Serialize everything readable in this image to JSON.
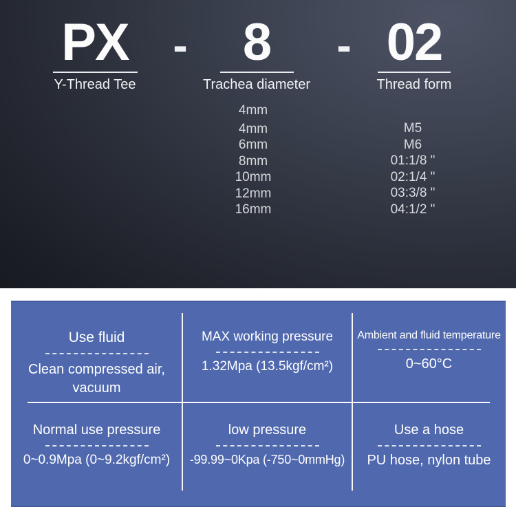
{
  "model_code": {
    "separator": "-",
    "parts": [
      {
        "code": "PX",
        "label": "Y-Thread Tee"
      },
      {
        "code": "8",
        "label": "Trachea diameter"
      },
      {
        "code": "02",
        "label": "Thread form"
      }
    ],
    "trachea_diameter_options": [
      "4mm",
      "4mm",
      "6mm",
      "8mm",
      "10mm",
      "12mm",
      "16mm"
    ],
    "thread_form_options": [
      "M5",
      "M6",
      "01:1/8 \"",
      "02:1/4 \"",
      "03:3/8 \"",
      "04:1/2 \""
    ]
  },
  "spec_table": {
    "cells": [
      {
        "label": "Use fluid",
        "value": "Clean compressed air, vacuum"
      },
      {
        "label": "MAX working pressure",
        "value": "1.32Mpa (13.5kgf/cm²)"
      },
      {
        "label": "Ambient and fluid temperature",
        "value": "0~60°C"
      },
      {
        "label": "Normal use pressure",
        "value": "0~0.9Mpa (0~9.2kgf/cm²)"
      },
      {
        "label": "low pressure",
        "value": "-99.99~0Kpa (-750~0mmHg)"
      },
      {
        "label": "Use a hose",
        "value": "PU hose, nylon tube"
      }
    ]
  },
  "colors": {
    "panel-blue": "#4f68ae",
    "panel-border": "#44599e",
    "dark-1": "#14161b",
    "dark-2": "#4d5364",
    "text-light": "#f1f2f4",
    "text-dim": "#d9dbdf"
  }
}
